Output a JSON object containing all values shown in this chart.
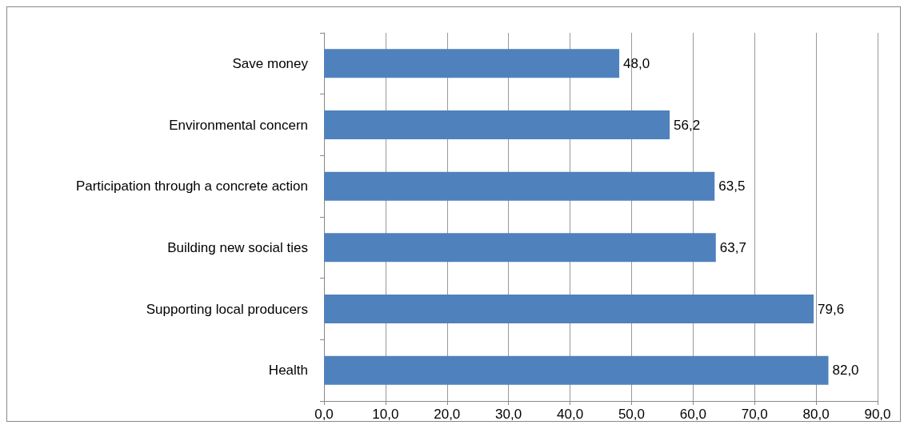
{
  "chart_data": {
    "type": "bar",
    "orientation": "horizontal",
    "categories": [
      "Save money",
      "Environmental concern",
      "Participation through a concrete action",
      "Building new social ties",
      "Supporting local producers",
      "Health"
    ],
    "values": [
      48.0,
      56.2,
      63.5,
      63.7,
      79.6,
      82.0
    ],
    "value_labels": [
      "48,0",
      "56,2",
      "63,5",
      "63,7",
      "79,6",
      "82,0"
    ],
    "color": "#4f81bd",
    "xlim": [
      0,
      90
    ],
    "xticks": [
      {
        "value": 0,
        "label": "0,0"
      },
      {
        "value": 10,
        "label": "10,0"
      },
      {
        "value": 20,
        "label": "20,0"
      },
      {
        "value": 30,
        "label": "30,0"
      },
      {
        "value": 40,
        "label": "40,0"
      },
      {
        "value": 50,
        "label": "50,0"
      },
      {
        "value": 60,
        "label": "60,0"
      },
      {
        "value": 70,
        "label": "70,0"
      },
      {
        "value": 80,
        "label": "80,0"
      },
      {
        "value": 90,
        "label": "90,0"
      }
    ],
    "grid": "x"
  }
}
